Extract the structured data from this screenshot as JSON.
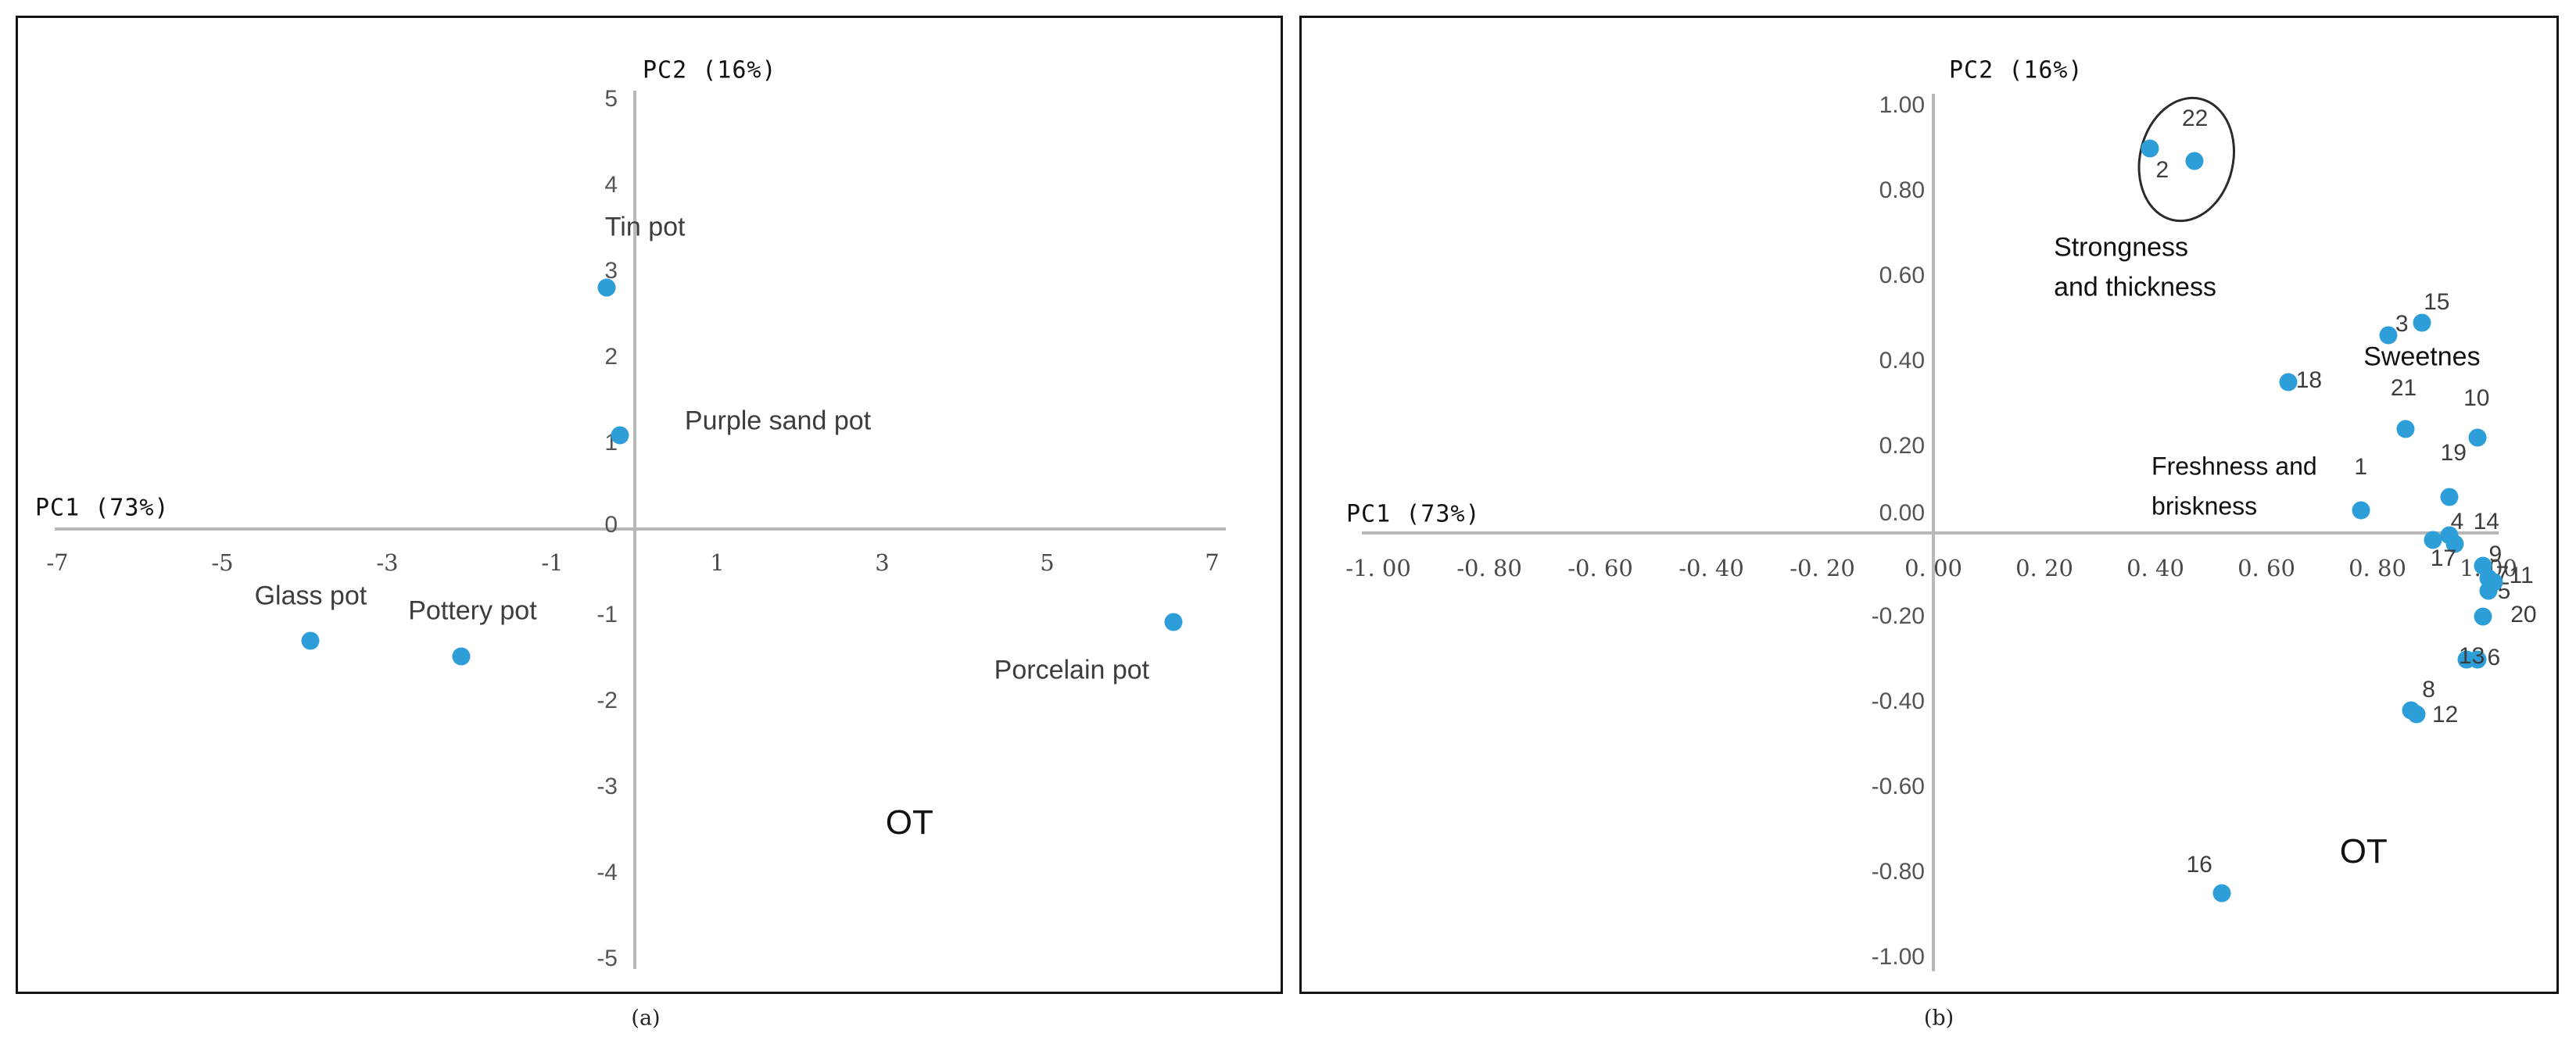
{
  "page": {
    "captions": {
      "a": "(a)",
      "b": "(b)"
    }
  },
  "colors": {
    "dot_blue": "#2d9ed8",
    "axis_gray": "#b8b8b8",
    "tick_text": "#4a4a4a",
    "label_text": "#3d3d3d",
    "annotation_text": "#111111",
    "panel_border": "#141414"
  },
  "chart_data": [
    {
      "id": "a",
      "type": "scatter",
      "xlabel": "PC1 (73%)",
      "ylabel": "PC2 (16%)",
      "xlim": [
        -7,
        7
      ],
      "ylim": [
        -5,
        5
      ],
      "grid": false,
      "legend": "none",
      "xticks": {
        "values": [
          -7,
          -5,
          -3,
          -1,
          1,
          3,
          5,
          7
        ],
        "labels": [
          "-7",
          "-5",
          "-3",
          "-1",
          "1",
          "3",
          "5",
          "7"
        ]
      },
      "yticks": {
        "values": [
          5,
          4,
          3,
          2,
          1,
          0,
          -1,
          -2,
          -3,
          -4,
          -5
        ],
        "labels": [
          "5",
          "4",
          "3",
          "2",
          "1",
          "0",
          "-1",
          "-2",
          "-3",
          "-4",
          "-5"
        ]
      },
      "points": [
        {
          "label": "Tin pot",
          "x": -0.34,
          "y": 2.81
        },
        {
          "label": "Purple sand pot",
          "x": -0.18,
          "y": 1.09
        },
        {
          "label": "Glass pot",
          "x": -3.93,
          "y": -1.3
        },
        {
          "label": "Pottery pot",
          "x": -2.1,
          "y": -1.48
        },
        {
          "label": "Porcelain pot",
          "x": 6.53,
          "y": -1.08
        }
      ],
      "annotations": [
        {
          "id": "a_ot",
          "lines": [
            "OT"
          ],
          "x": 3.33,
          "y": -3.42
        }
      ]
    },
    {
      "id": "b",
      "type": "scatter",
      "xlabel": "PC1 (73%)",
      "ylabel": "PC2 (16%)",
      "xlim": [
        -1.0,
        1.0
      ],
      "ylim": [
        -1.0,
        1.0
      ],
      "grid": false,
      "legend": "none",
      "xticks": {
        "values": [
          -1.0,
          -0.8,
          -0.6,
          -0.4,
          -0.2,
          0.0,
          0.2,
          0.4,
          0.6,
          0.8,
          1.0
        ],
        "labels": [
          "-1. 00",
          "-0. 80",
          "-0. 60",
          "-0. 40",
          "-0. 20",
          "0. 00",
          "0. 20",
          "0. 40",
          "0. 60",
          "0. 80",
          "1. 00"
        ]
      },
      "yticks": {
        "values": [
          1.0,
          0.8,
          0.6,
          0.4,
          0.2,
          0.0,
          -0.2,
          -0.4,
          -0.6,
          -0.8,
          -1.0
        ],
        "labels": [
          "1.00",
          "0.80",
          "0.60",
          "0.40",
          "0.20",
          "0.00",
          "-0.20",
          "-0.40",
          "-0.60",
          "-0.80",
          "-1.00"
        ]
      },
      "points": [
        {
          "label": "1",
          "x": 0.77,
          "y": 0.05
        },
        {
          "label": "2",
          "x": 0.39,
          "y": 0.9
        },
        {
          "label": "3",
          "x": 0.82,
          "y": 0.46
        },
        {
          "label": "4",
          "x": 0.9,
          "y": -0.02
        },
        {
          "label": "5",
          "x": 1.0,
          "y": -0.14
        },
        {
          "label": "6",
          "x": 0.98,
          "y": -0.3
        },
        {
          "label": "7",
          "x": 1.0,
          "y": -0.11
        },
        {
          "label": "8",
          "x": 0.86,
          "y": -0.42
        },
        {
          "label": "9",
          "x": 0.99,
          "y": -0.08
        },
        {
          "label": "10",
          "x": 0.98,
          "y": 0.22
        },
        {
          "label": "11",
          "x": 1.01,
          "y": -0.12
        },
        {
          "label": "12",
          "x": 0.87,
          "y": -0.43
        },
        {
          "label": "13",
          "x": 0.96,
          "y": -0.3
        },
        {
          "label": "14",
          "x": 0.93,
          "y": -0.01
        },
        {
          "label": "15",
          "x": 0.88,
          "y": 0.49
        },
        {
          "label": "16",
          "x": 0.52,
          "y": -0.85
        },
        {
          "label": "17",
          "x": 0.94,
          "y": -0.03
        },
        {
          "label": "18",
          "x": 0.64,
          "y": 0.35
        },
        {
          "label": "19",
          "x": 0.93,
          "y": 0.08
        },
        {
          "label": "20",
          "x": 0.99,
          "y": -0.2
        },
        {
          "label": "21",
          "x": 0.85,
          "y": 0.24
        },
        {
          "label": "22",
          "x": 0.47,
          "y": 0.87
        }
      ],
      "annotations": [
        {
          "id": "strongness",
          "lines": [
            "Strongness",
            "and thickness"
          ],
          "x": 0.217,
          "y": 0.666
        },
        {
          "id": "sweetnes",
          "lines": [
            "Sweetnes"
          ],
          "x": 0.775,
          "y": 0.409
        },
        {
          "id": "freshness",
          "lines": [
            "Freshness and",
            "briskness"
          ],
          "x": 0.393,
          "y": 0.152
        },
        {
          "id": "b_ot",
          "lines": [
            "OT"
          ],
          "x": 0.775,
          "y": -0.752
        }
      ],
      "ellipse": {
        "cx": 0.456,
        "cy": 0.873,
        "rx": 0.082,
        "ry": 0.143,
        "rotation_deg": 13,
        "encloses": [
          "2",
          "22"
        ]
      }
    }
  ]
}
